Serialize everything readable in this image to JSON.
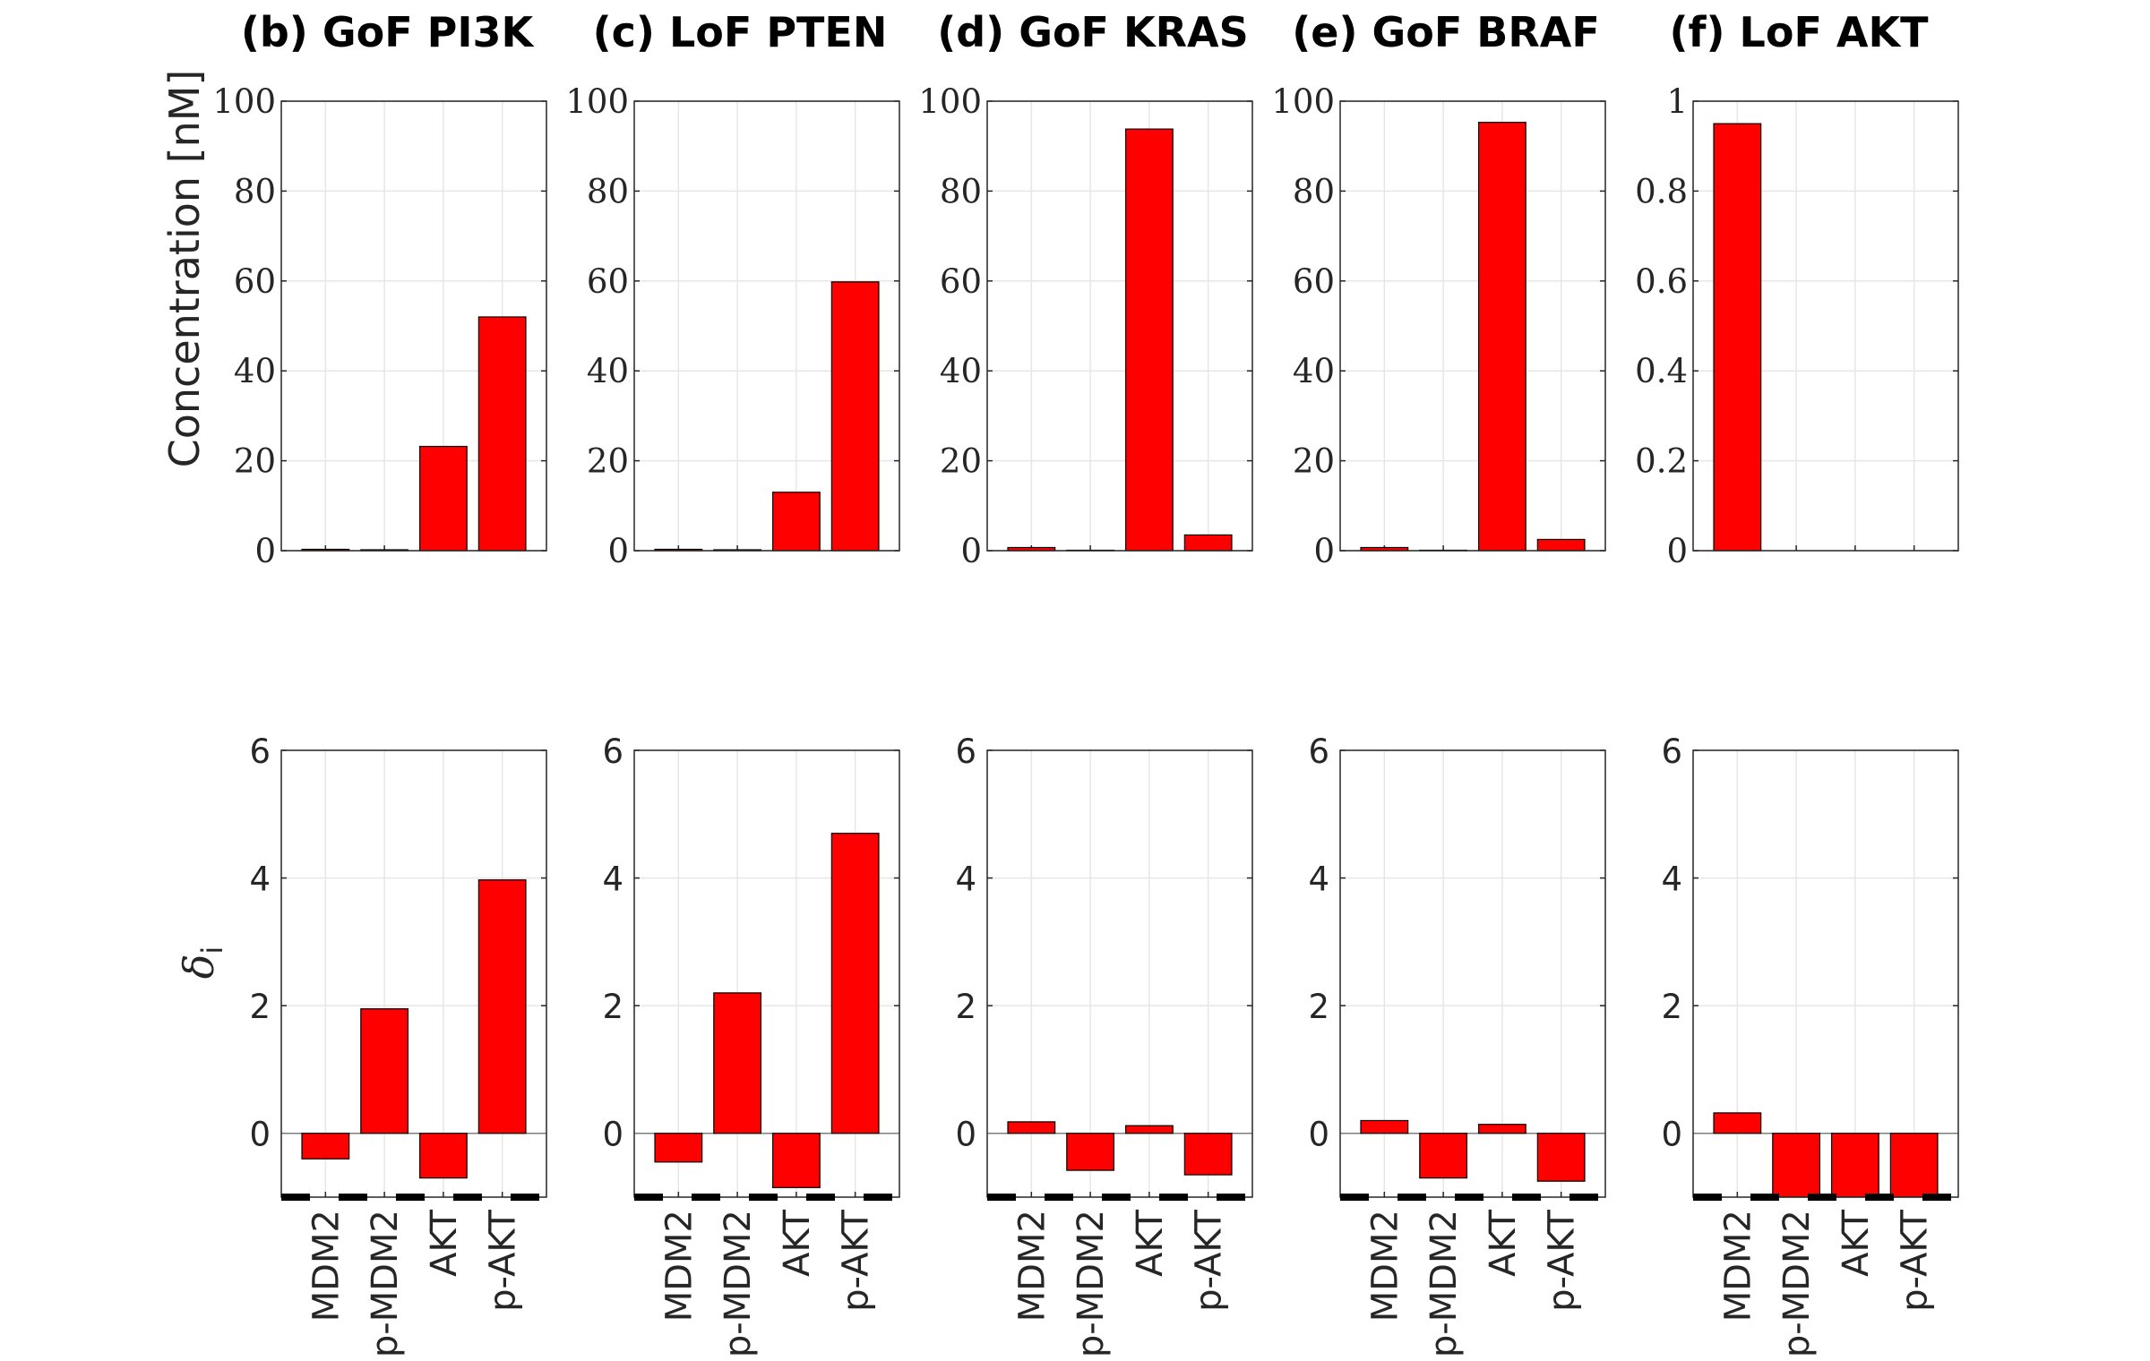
{
  "chart_data": {
    "type": "bar",
    "categories": [
      "MDM2",
      "p-MDM2",
      "AKT",
      "p-AKT"
    ],
    "series_color": "#ff0000",
    "top_row": {
      "ylabel": "Concentration [nM]",
      "grid": true
    },
    "bottom_row": {
      "ylabel_symbol": "δ",
      "ylabel_subscript": "i",
      "grid": true,
      "reference_line_y": -1
    },
    "panels": [
      {
        "title": "(b)  GoF PI3K",
        "top": {
          "ylim": [
            0,
            100
          ],
          "yticks": [
            "0",
            "20",
            "40",
            "60",
            "80",
            "100"
          ],
          "values": [
            0.3,
            0.2,
            23.2,
            52.0
          ]
        },
        "bottom": {
          "ylim": [
            -1,
            6
          ],
          "yticks": [
            "0",
            "2",
            "4",
            "6"
          ],
          "values": [
            -0.4,
            1.95,
            -0.7,
            3.97
          ]
        }
      },
      {
        "title": "(c)  LoF PTEN",
        "top": {
          "ylim": [
            0,
            100
          ],
          "yticks": [
            "0",
            "20",
            "40",
            "60",
            "80",
            "100"
          ],
          "values": [
            0.3,
            0.2,
            13.0,
            59.8
          ]
        },
        "bottom": {
          "ylim": [
            -1,
            6
          ],
          "yticks": [
            "0",
            "2",
            "4",
            "6"
          ],
          "values": [
            -0.45,
            2.2,
            -0.85,
            4.7
          ]
        }
      },
      {
        "title": "(d)  GoF KRAS",
        "top": {
          "ylim": [
            0,
            100
          ],
          "yticks": [
            "0",
            "20",
            "40",
            "60",
            "80",
            "100"
          ],
          "values": [
            0.7,
            0.1,
            93.8,
            3.5
          ]
        },
        "bottom": {
          "ylim": [
            -1,
            6
          ],
          "yticks": [
            "0",
            "2",
            "4",
            "6"
          ],
          "values": [
            0.18,
            -0.58,
            0.12,
            -0.65
          ]
        }
      },
      {
        "title": "(e)  GoF BRAF",
        "top": {
          "ylim": [
            0,
            100
          ],
          "yticks": [
            "0",
            "20",
            "40",
            "60",
            "80",
            "100"
          ],
          "values": [
            0.7,
            0.1,
            95.3,
            2.5
          ]
        },
        "bottom": {
          "ylim": [
            -1,
            6
          ],
          "yticks": [
            "0",
            "2",
            "4",
            "6"
          ],
          "values": [
            0.2,
            -0.7,
            0.14,
            -0.75
          ]
        }
      },
      {
        "title": "(f)  LoF AKT",
        "top": {
          "ylim": [
            0,
            1
          ],
          "yticks": [
            "0",
            "0.2",
            "0.4",
            "0.6",
            "0.8",
            "1"
          ],
          "values": [
            0.95,
            0,
            0,
            0
          ]
        },
        "bottom": {
          "ylim": [
            -1,
            6
          ],
          "yticks": [
            "0",
            "2",
            "4",
            "6"
          ],
          "values": [
            0.32,
            -1,
            -1,
            -1
          ]
        }
      }
    ]
  }
}
